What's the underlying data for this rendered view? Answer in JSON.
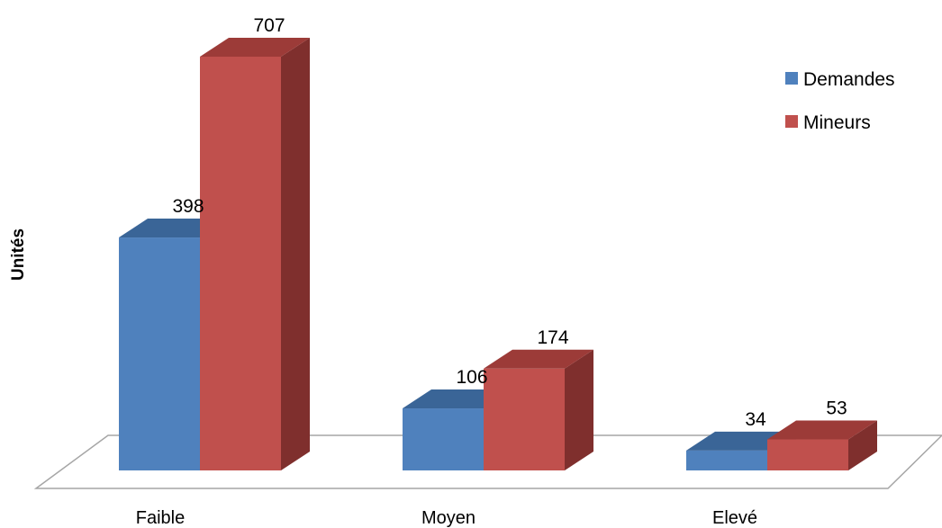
{
  "chart_data": {
    "type": "bar",
    "categories": [
      "Faible",
      "Moyen",
      "Elevé"
    ],
    "series": [
      {
        "name": "Demandes",
        "values": [
          398,
          106,
          34
        ],
        "color": "#4f81bd",
        "side_color": "#2e5a86",
        "top_color": "#3a6597"
      },
      {
        "name": "Mineurs",
        "values": [
          707,
          174,
          53
        ],
        "color": "#c0504d",
        "side_color": "#7f2f2d",
        "top_color": "#9c3b38"
      }
    ],
    "title": "",
    "xlabel": "",
    "ylabel": "Unités",
    "legend_position": "top-right",
    "grid": false
  }
}
